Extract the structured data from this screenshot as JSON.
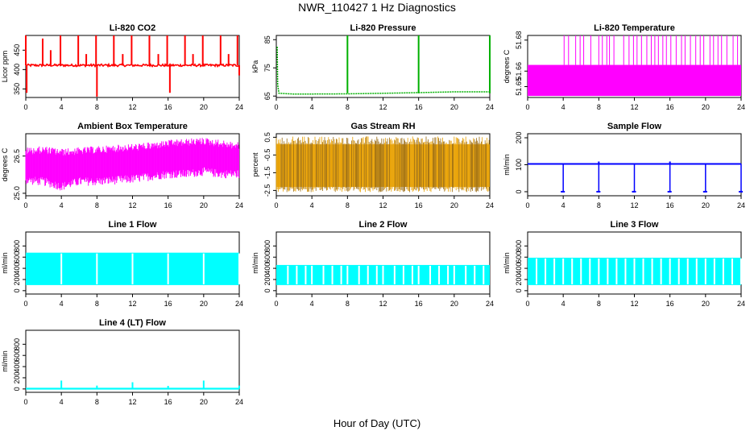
{
  "page": {
    "title": "NWR_110427  1 Hz Diagnostics",
    "xlabel": "Hour of Day (UTC)"
  },
  "chart_data": [
    {
      "type": "line",
      "title": "Li-820 CO2",
      "ylabel": "Licor ppm",
      "color": "#ff0000",
      "xlim": [
        0,
        24
      ],
      "ylim": [
        328,
        488
      ],
      "xticks": [
        0,
        4,
        8,
        12,
        16,
        20,
        24
      ],
      "yticks": [
        350,
        400,
        450
      ],
      "series": [
        {
          "baseline": 411,
          "noise": 3,
          "spikes_up": [
            {
              "x": 0.0,
              "y": 488
            },
            {
              "x": 1.9,
              "y": 480
            },
            {
              "x": 3.9,
              "y": 488
            },
            {
              "x": 5.9,
              "y": 488
            },
            {
              "x": 7.9,
              "y": 488
            },
            {
              "x": 9.9,
              "y": 488
            },
            {
              "x": 11.9,
              "y": 488
            },
            {
              "x": 13.9,
              "y": 488
            },
            {
              "x": 15.9,
              "y": 488
            },
            {
              "x": 17.9,
              "y": 488
            },
            {
              "x": 19.9,
              "y": 488
            },
            {
              "x": 21.9,
              "y": 488
            },
            {
              "x": 23.8,
              "y": 488
            },
            {
              "x": 2.8,
              "y": 450
            },
            {
              "x": 6.8,
              "y": 440
            },
            {
              "x": 10.9,
              "y": 440
            },
            {
              "x": 14.9,
              "y": 440
            },
            {
              "x": 18.8,
              "y": 440
            },
            {
              "x": 22.8,
              "y": 440
            }
          ],
          "spikes_down": [
            {
              "x": 0.1,
              "y": 340
            },
            {
              "x": 8.0,
              "y": 330
            },
            {
              "x": 16.2,
              "y": 340
            },
            {
              "x": 24.0,
              "y": 385
            }
          ]
        }
      ]
    },
    {
      "type": "line",
      "title": "Li-820 Pressure",
      "ylabel": "kPa",
      "color": "#00b000",
      "xlim": [
        0,
        24
      ],
      "ylim": [
        64.5,
        86.5
      ],
      "xticks": [
        0,
        4,
        8,
        12,
        16,
        20,
        24
      ],
      "yticks": [
        65,
        75,
        85
      ],
      "series": [
        {
          "points": [
            [
              0.1,
              82.5
            ],
            [
              0.15,
              69.0
            ],
            [
              0.3,
              66.0
            ],
            [
              2.0,
              65.7
            ],
            [
              8.0,
              65.8
            ],
            [
              12.0,
              66.0
            ],
            [
              16.0,
              66.2
            ],
            [
              20.0,
              66.5
            ],
            [
              23.9,
              66.5
            ]
          ],
          "spikes_up": [
            {
              "x": 8.0,
              "y": 86.5
            },
            {
              "x": 16.0,
              "y": 86.5
            },
            {
              "x": 24.0,
              "y": 86.5
            }
          ]
        }
      ]
    },
    {
      "type": "line",
      "title": "Li-820 Temperature",
      "ylabel": "degrees C",
      "color": "#ff00ff",
      "xlim": [
        0,
        24
      ],
      "ylim": [
        51.643,
        51.683
      ],
      "xticks": [
        0,
        4,
        8,
        12,
        16,
        20,
        24
      ],
      "yticks": [
        51.65,
        51.66,
        51.68
      ],
      "yticklabels": [
        "51.65",
        "51.66",
        "51.68"
      ],
      "series": [
        {
          "band": [
            51.644,
            51.664
          ],
          "spike_top": 51.683,
          "spikes_x": [
            4.1,
            4.6,
            5.4,
            5.9,
            6.3,
            7.1,
            8.0,
            8.4,
            8.9,
            9.2,
            9.7,
            10.8,
            11.4,
            11.9,
            12.3,
            12.8,
            13.4,
            13.9,
            14.3,
            14.7,
            15.2,
            15.6,
            16.1,
            16.7,
            17.3,
            17.7,
            18.3,
            18.9,
            19.4,
            19.8,
            20.5,
            20.9,
            21.4,
            21.8,
            22.4,
            23.1,
            23.6
          ]
        }
      ]
    },
    {
      "type": "line",
      "title": "Ambient Box Temperature",
      "ylabel": "degrees C",
      "color": "#ff00ff",
      "xlim": [
        0,
        24
      ],
      "ylim": [
        24.9,
        27.4
      ],
      "xticks": [
        0,
        4,
        8,
        12,
        16,
        20,
        24
      ],
      "yticks": [
        25.0,
        26.5
      ],
      "yticklabels": [
        "25.0",
        "26.5"
      ],
      "series": [
        {
          "envelope_x": [
            0,
            2,
            4,
            6,
            8,
            10,
            12,
            14,
            16,
            18,
            20,
            22,
            24
          ],
          "envelope_low": [
            25.35,
            25.3,
            25.1,
            25.3,
            25.3,
            25.35,
            25.4,
            25.5,
            25.6,
            25.6,
            25.7,
            25.6,
            25.6
          ],
          "envelope_high": [
            26.85,
            26.9,
            26.8,
            26.85,
            26.9,
            26.95,
            27.0,
            27.05,
            27.15,
            27.2,
            27.25,
            27.15,
            27.05
          ]
        }
      ]
    },
    {
      "type": "scatter",
      "title": "Gas Stream RH",
      "ylabel": "percent",
      "color": "#e8a000",
      "xlim": [
        0,
        24
      ],
      "ylim": [
        -2.8,
        0.7
      ],
      "xticks": [
        0,
        4,
        8,
        12,
        16,
        20,
        24
      ],
      "yticks": [
        -2.5,
        -1.5,
        -0.5,
        0.5
      ],
      "yticklabels": [
        "-2.5",
        "-1.5",
        "-0.5",
        "0.5"
      ],
      "series": [
        {
          "band": [
            -2.3,
            0.1
          ],
          "extremes": [
            -2.6,
            0.55
          ]
        }
      ]
    },
    {
      "type": "line",
      "title": "Sample Flow",
      "ylabel": "ml/min",
      "color": "#0000ff",
      "xlim": [
        0,
        24
      ],
      "ylim": [
        -15,
        215
      ],
      "xticks": [
        0,
        4,
        8,
        12,
        16,
        20,
        24
      ],
      "yticks": [
        0,
        100,
        200
      ],
      "series": [
        {
          "baseline": 103,
          "drops": [
            {
              "x": 4.0,
              "y": 0
            },
            {
              "x": 8.0,
              "y": 0
            },
            {
              "x": 12.0,
              "y": 0
            },
            {
              "x": 16.0,
              "y": 0
            },
            {
              "x": 20.0,
              "y": 0
            },
            {
              "x": 24.0,
              "y": 0
            }
          ],
          "bumps": [
            {
              "x": 8.0,
              "y": 112
            },
            {
              "x": 16.0,
              "y": 112
            }
          ]
        }
      ]
    },
    {
      "type": "line",
      "title": "Line 1 Flow",
      "ylabel": "ml/min",
      "color": "#00ffff",
      "xlim": [
        0,
        24
      ],
      "ylim": [
        -60,
        1050
      ],
      "xticks": [
        0,
        4,
        8,
        12,
        16,
        20,
        24
      ],
      "yticks": [
        0,
        200,
        400,
        600,
        800
      ],
      "series": [
        {
          "band": [
            100,
            680
          ],
          "gaps": [
            4.0,
            8.0,
            12.0,
            16.0,
            20.0,
            24.0
          ]
        }
      ]
    },
    {
      "type": "line",
      "title": "Line 2 Flow",
      "ylabel": "ml/min",
      "color": "#00ffff",
      "xlim": [
        0,
        24
      ],
      "ylim": [
        -60,
        1050
      ],
      "xticks": [
        0,
        4,
        8,
        12,
        16,
        20,
        24
      ],
      "yticks": [
        0,
        200,
        400,
        600,
        800
      ],
      "series": [
        {
          "band": [
            100,
            460
          ],
          "gaps": [
            1.3,
            2.3,
            3.3,
            4.0,
            5.3,
            6.3,
            7.3,
            8.0,
            9.3,
            10.3,
            11.3,
            12.0,
            13.3,
            14.3,
            15.3,
            16.0,
            17.3,
            18.3,
            19.3,
            20.0,
            21.3,
            22.3,
            23.3
          ]
        }
      ]
    },
    {
      "type": "line",
      "title": "Line 3 Flow",
      "ylabel": "ml/min",
      "color": "#00ffff",
      "xlim": [
        0,
        24
      ],
      "ylim": [
        -60,
        1050
      ],
      "xticks": [
        0,
        4,
        8,
        12,
        16,
        20,
        24
      ],
      "yticks": [
        0,
        200,
        400,
        600,
        800
      ],
      "series": [
        {
          "band": [
            100,
            590
          ],
          "gaps": [
            1.0,
            2.0,
            3.0,
            4.0,
            5.0,
            6.0,
            7.0,
            8.0,
            9.0,
            10.0,
            11.0,
            12.0,
            13.0,
            14.0,
            15.0,
            16.0,
            17.0,
            18.0,
            19.0,
            20.0,
            21.0,
            22.0,
            23.0,
            24.0
          ]
        }
      ]
    },
    {
      "type": "line",
      "title": "Line 4 (LT) Flow",
      "ylabel": "ml/min",
      "color": "#00ffff",
      "xlim": [
        0,
        24
      ],
      "ylim": [
        -60,
        1050
      ],
      "xticks": [
        0,
        4,
        8,
        12,
        16,
        20,
        24
      ],
      "yticks": [
        0,
        200,
        400,
        600,
        800
      ],
      "series": [
        {
          "baseline": 5,
          "spikes_up": [
            {
              "x": 4.0,
              "y": 150
            },
            {
              "x": 8.0,
              "y": 60
            },
            {
              "x": 12.0,
              "y": 120
            },
            {
              "x": 16.0,
              "y": 55
            },
            {
              "x": 20.0,
              "y": 150
            },
            {
              "x": 24.0,
              "y": 60
            }
          ]
        }
      ]
    }
  ]
}
